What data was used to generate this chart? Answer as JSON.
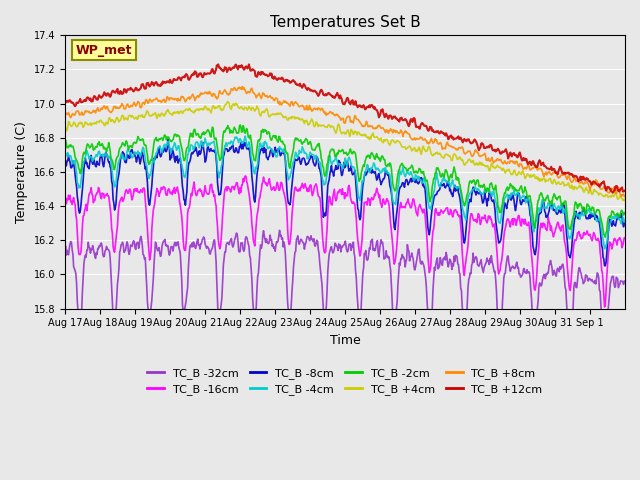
{
  "title": "Temperatures Set B",
  "xlabel": "Time",
  "ylabel": "Temperature (C)",
  "ylim": [
    15.8,
    17.4
  ],
  "background_color": "#e8e8e8",
  "plot_bg_color": "#e8e8e8",
  "legend_label": "WP_met",
  "legend_box_color": "#ffff99",
  "legend_box_edge": "#8b8b00",
  "series": [
    {
      "name": "TC_B -32cm",
      "color": "#9933cc",
      "lw": 1.2
    },
    {
      "name": "TC_B -16cm",
      "color": "#ff00ff",
      "lw": 1.2
    },
    {
      "name": "TC_B -8cm",
      "color": "#0000cc",
      "lw": 1.2
    },
    {
      "name": "TC_B -4cm",
      "color": "#00cccc",
      "lw": 1.2
    },
    {
      "name": "TC_B -2cm",
      "color": "#00cc00",
      "lw": 1.2
    },
    {
      "name": "TC_B +4cm",
      "color": "#cccc00",
      "lw": 1.2
    },
    {
      "name": "TC_B +8cm",
      "color": "#ff8800",
      "lw": 1.2
    },
    {
      "name": "TC_B +12cm",
      "color": "#cc0000",
      "lw": 1.5
    }
  ],
  "n_days": 16,
  "pts_per_day": 48,
  "tick_labels": [
    "Aug 17",
    "Aug 18",
    "Aug 19",
    "Aug 20",
    "Aug 21",
    "Aug 22",
    "Aug 23",
    "Aug 24",
    "Aug 25",
    "Aug 26",
    "Aug 27",
    "Aug 28",
    "Aug 29",
    "Aug 30",
    "Aug 31",
    "Sep 1"
  ]
}
